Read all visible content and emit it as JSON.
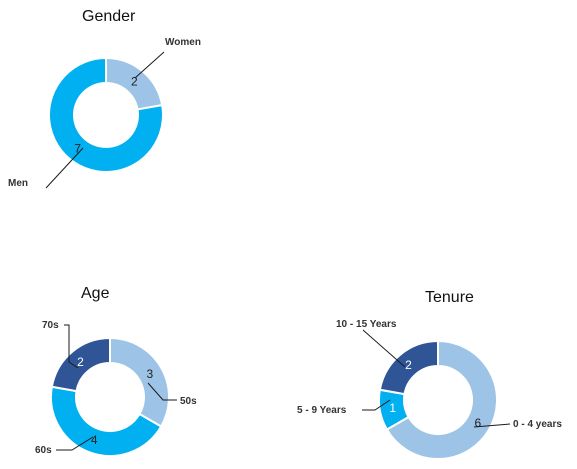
{
  "chart_data": [
    {
      "type": "pie",
      "title": "Gender",
      "slices": [
        {
          "label": "Women",
          "value": 2,
          "color": "#9DC3E6"
        },
        {
          "label": "Men",
          "value": 7,
          "color": "#00B0F0"
        }
      ]
    },
    {
      "type": "pie",
      "title": "Age",
      "slices": [
        {
          "label": "50s",
          "value": 3,
          "color": "#9DC3E6"
        },
        {
          "label": "60s",
          "value": 4,
          "color": "#00B0F0"
        },
        {
          "label": "70s",
          "value": 2,
          "color": "#2F5597"
        }
      ]
    },
    {
      "type": "pie",
      "title": "Tenure",
      "slices": [
        {
          "label": "0 - 4 years",
          "value": 6,
          "color": "#9DC3E6"
        },
        {
          "label": "5 - 9 Years",
          "value": 1,
          "color": "#00B0F0"
        },
        {
          "label": "10 - 15 Years",
          "value": 2,
          "color": "#2F5597"
        }
      ]
    }
  ]
}
